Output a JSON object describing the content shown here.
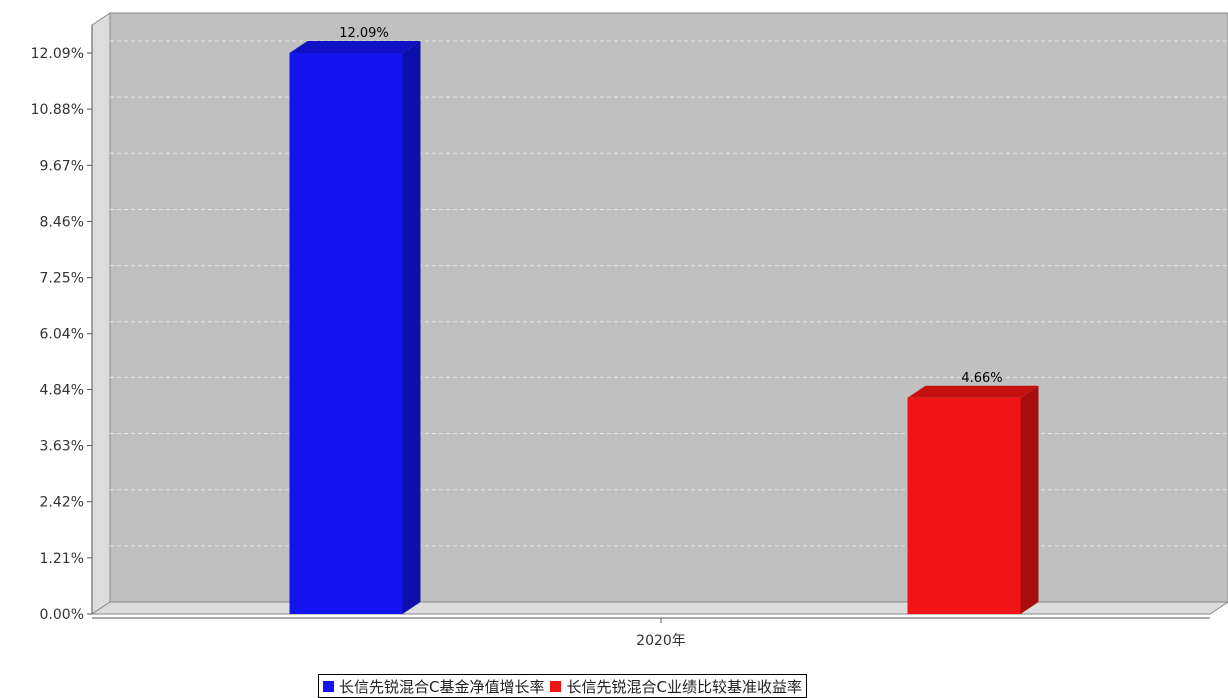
{
  "chart_data": {
    "type": "bar",
    "categories": [
      "2020年"
    ],
    "series": [
      {
        "name": "长信先锐混合C基金净值增长率",
        "values": [
          12.09
        ],
        "color": "#1414f0",
        "label": "12.09%"
      },
      {
        "name": "长信先锐混合C业绩比较基准收益率",
        "values": [
          4.66
        ],
        "color": "#f01414",
        "label": "4.66%"
      }
    ],
    "ylim": [
      0,
      12.09
    ],
    "yticks": [
      "0.00%",
      "1.21%",
      "2.42%",
      "3.63%",
      "4.84%",
      "6.04%",
      "7.25%",
      "8.46%",
      "9.67%",
      "10.88%",
      "12.09%"
    ],
    "xlabel": "",
    "ylabel": "",
    "grid": true,
    "legend_position": "bottom",
    "background_color": "#c0c0c0"
  }
}
